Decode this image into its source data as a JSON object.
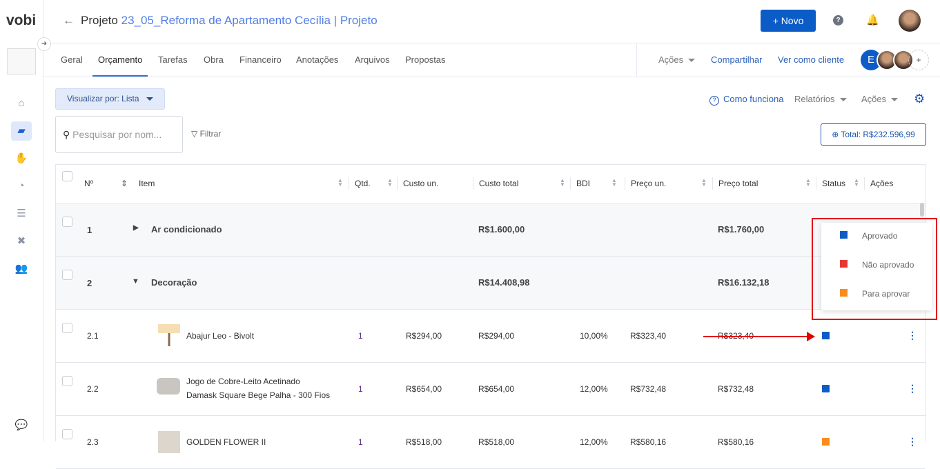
{
  "app": {
    "logo": "vobi"
  },
  "header": {
    "title_prefix": "Projeto",
    "project_name": "23_05_Reforma de Apartamento Cecília | Projeto",
    "new_button": "+ Novo",
    "help_icon": "?"
  },
  "tabs": [
    "Geral",
    "Orçamento",
    "Tarefas",
    "Obra",
    "Financeiro",
    "Anotações",
    "Arquivos",
    "Propostas"
  ],
  "active_tab": "Orçamento",
  "tab_actions": {
    "acoes": "Ações",
    "compartilhar": "Compartilhar",
    "ver_cliente": "Ver como cliente",
    "avatar_initial": "E",
    "add": "+"
  },
  "toolbar": {
    "visualizar": "Visualizar por: Lista",
    "como_funciona": "Como funciona",
    "relatorios": "Relatórios",
    "acoes": "Ações",
    "search_placeholder": "Pesquisar por nom...",
    "filtrar": "Filtrar",
    "total": "Total: R$232.596,99"
  },
  "table": {
    "columns": [
      "Nº",
      "Item",
      "Qtd.",
      "Custo un.",
      "Custo total",
      "BDI",
      "Preço un.",
      "Preço total",
      "Status",
      "Ações"
    ],
    "rows": [
      {
        "n": "1",
        "item": "Ar condicionado",
        "custo_total": "R$1.600,00",
        "preco_total": "R$1.760,00",
        "group": true,
        "expanded": false
      },
      {
        "n": "2",
        "item": "Decoração",
        "custo_total": "R$14.408,98",
        "preco_total": "R$16.132,18",
        "group": true,
        "expanded": true
      },
      {
        "n": "2.1",
        "item": "Abajur Leo - Bivolt",
        "qtd": "1",
        "custo_un": "R$294,00",
        "custo_total": "R$294,00",
        "bdi": "10,00%",
        "preco_un": "R$323,40",
        "preco_total": "R$323,40",
        "status": "Aprovado"
      },
      {
        "n": "2.2",
        "item": "Jogo de Cobre-Leito Acetinado",
        "item2": "Damask Square Bege Palha - 300 Fios",
        "qtd": "1",
        "custo_un": "R$654,00",
        "custo_total": "R$654,00",
        "bdi": "12,00%",
        "preco_un": "R$732,48",
        "preco_total": "R$732,48",
        "status": "Aprovado"
      },
      {
        "n": "2.3",
        "item": "GOLDEN FLOWER II",
        "qtd": "1",
        "custo_un": "R$518,00",
        "custo_total": "R$518,00",
        "bdi": "12,00%",
        "preco_un": "R$580,16",
        "preco_total": "R$580,16",
        "status": "Para aprovar"
      }
    ]
  },
  "status_menu": [
    {
      "label": "Aprovado",
      "color": "#0b5cc6"
    },
    {
      "label": "Não aprovado",
      "color": "#e53935"
    },
    {
      "label": "Para aprovar",
      "color": "#fb8c1c"
    }
  ]
}
